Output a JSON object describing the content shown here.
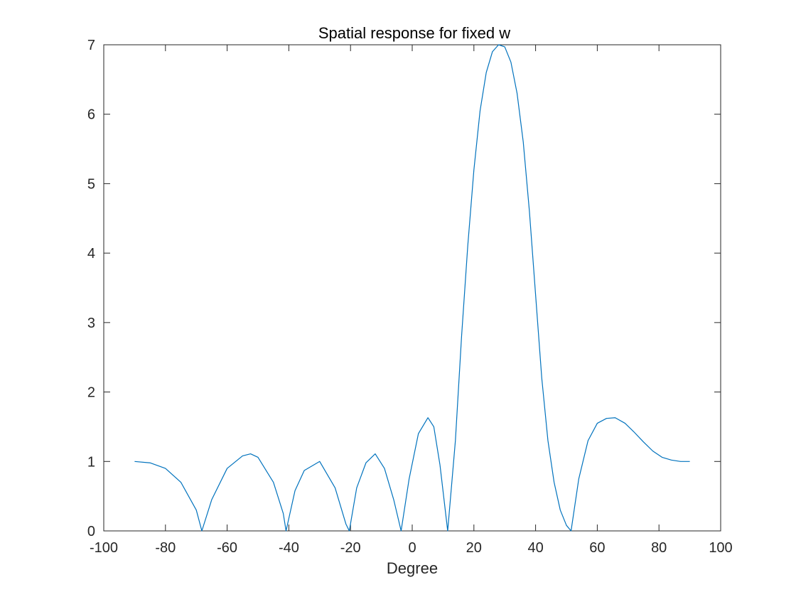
{
  "chart_data": {
    "type": "line",
    "title": "Spatial response for fixed w",
    "xlabel": "Degree",
    "ylabel": "",
    "xlim": [
      -100,
      100
    ],
    "ylim": [
      0,
      7
    ],
    "xticks": [
      -100,
      -80,
      -60,
      -40,
      -20,
      0,
      20,
      40,
      60,
      80,
      100
    ],
    "yticks": [
      0,
      1,
      2,
      3,
      4,
      5,
      6,
      7
    ],
    "xtick_labels": [
      "-100",
      "-80",
      "-60",
      "-40",
      "-20",
      "0",
      "20",
      "40",
      "60",
      "80",
      "100"
    ],
    "ytick_labels": [
      "0",
      "1",
      "2",
      "3",
      "4",
      "5",
      "6",
      "7"
    ],
    "grid": false,
    "box": true,
    "line_color": "#0072BD",
    "axis_color": "#262626",
    "series": [
      {
        "x": [
          -90,
          -85,
          -80,
          -75,
          -70,
          -68.2,
          -65,
          -60,
          -55,
          -52.4,
          -50,
          -45,
          -41.8,
          -40.9,
          -38,
          -35,
          -30,
          -25,
          -21.5,
          -20.4,
          -18,
          -15,
          -12,
          -9,
          -6,
          -3.6,
          -1,
          2,
          5.1,
          7,
          9,
          11.5,
          14,
          16,
          18,
          20,
          22,
          24,
          26,
          28,
          30,
          32,
          34,
          36,
          38,
          40,
          42,
          44,
          46,
          48,
          50,
          51.5,
          54,
          57,
          60,
          63,
          65.8,
          69,
          72,
          75,
          78,
          81,
          84,
          87,
          90
        ],
        "y": [
          1.0,
          0.98,
          0.9,
          0.7,
          0.3,
          0.0,
          0.45,
          0.9,
          1.08,
          1.11,
          1.06,
          0.7,
          0.25,
          0.0,
          0.58,
          0.87,
          1.0,
          0.62,
          0.1,
          0.0,
          0.62,
          0.98,
          1.11,
          0.9,
          0.45,
          0.0,
          0.75,
          1.4,
          1.63,
          1.5,
          0.95,
          0.0,
          1.3,
          2.8,
          4.1,
          5.2,
          6.05,
          6.6,
          6.9,
          7.0,
          6.97,
          6.75,
          6.3,
          5.6,
          4.6,
          3.4,
          2.2,
          1.3,
          0.7,
          0.3,
          0.08,
          0.0,
          0.75,
          1.3,
          1.55,
          1.62,
          1.63,
          1.55,
          1.42,
          1.28,
          1.15,
          1.06,
          1.02,
          1.0,
          1.0
        ]
      }
    ]
  }
}
